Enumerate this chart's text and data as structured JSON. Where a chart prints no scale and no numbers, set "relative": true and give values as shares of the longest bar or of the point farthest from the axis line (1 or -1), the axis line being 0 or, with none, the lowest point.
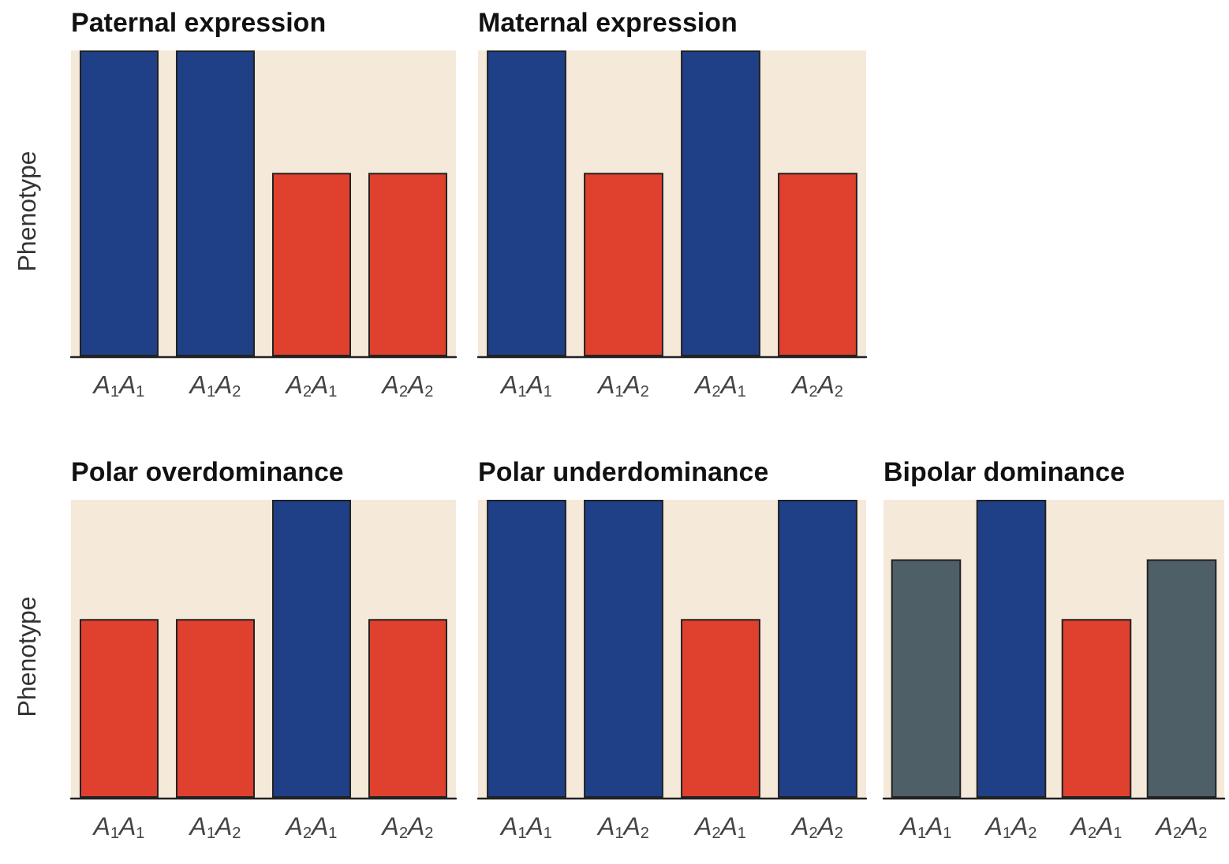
{
  "chart_data": [
    {
      "type": "bar",
      "title": "Paternal expression",
      "ylabel": "Phenotype",
      "relative": true,
      "categories": [
        "A$_{1}$A$_{1}$",
        "A$_{1}$A$_{2}$",
        "A$_{2}$A$_{1}$",
        "A$_{2}$A$_{2}$"
      ],
      "values": [
        1,
        1,
        0.6,
        0.6
      ],
      "colors": [
        "#1f3f86",
        "#1f3f86",
        "#e0402e",
        "#e0402e"
      ]
    },
    {
      "type": "bar",
      "title": "Maternal expression",
      "relative": true,
      "categories": [
        "A$_{1}$A$_{1}$",
        "A$_{1}$A$_{2}$",
        "A$_{2}$A$_{1}$",
        "A$_{2}$A$_{2}$"
      ],
      "values": [
        1,
        0.6,
        1,
        0.6
      ],
      "colors": [
        "#1f3f86",
        "#e0402e",
        "#1f3f86",
        "#e0402e"
      ]
    },
    {
      "type": "bar",
      "title": "Polar overdominance",
      "ylabel": "Phenotype",
      "relative": true,
      "categories": [
        "A$_{1}$A$_{1}$",
        "A$_{1}$A$_{2}$",
        "A$_{2}$A$_{1}$",
        "A$_{2}$A$_{2}$"
      ],
      "values": [
        0.6,
        0.6,
        1,
        0.6
      ],
      "colors": [
        "#e0402e",
        "#e0402e",
        "#1f3f86",
        "#e0402e"
      ]
    },
    {
      "type": "bar",
      "title": "Polar underdominance",
      "relative": true,
      "categories": [
        "A$_{1}$A$_{1}$",
        "A$_{1}$A$_{2}$",
        "A$_{2}$A$_{1}$",
        "A$_{2}$A$_{2}$"
      ],
      "values": [
        1,
        1,
        0.6,
        1
      ],
      "colors": [
        "#1f3f86",
        "#1f3f86",
        "#e0402e",
        "#1f3f86"
      ]
    },
    {
      "type": "bar",
      "title": "Bipolar dominance",
      "relative": true,
      "categories": [
        "A$_{1}$A$_{1}$",
        "A$_{1}$A$_{2}$",
        "A$_{2}$A$_{1}$",
        "A$_{2}$A$_{2}$"
      ],
      "values": [
        0.8,
        1,
        0.6,
        0.8
      ],
      "colors": [
        "#4f5f68",
        "#1f3f86",
        "#e0402e",
        "#4f5f68"
      ]
    }
  ]
}
